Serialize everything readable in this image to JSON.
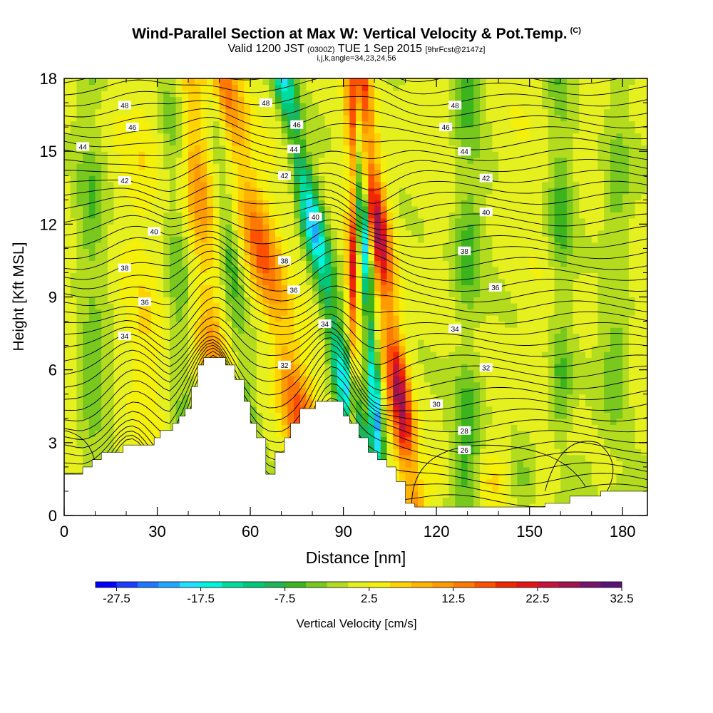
{
  "header": {
    "title": "Wind-Parallel Section at Max W: Vertical Velocity & Pot.Temp.",
    "copyright": "(C)",
    "valid_prefix": "Valid 1200 JST",
    "valid_utc": "(0300Z)",
    "valid_date": "TUE 1 Sep 2015",
    "forecast": "[9hrFcst@2147z]",
    "indices": "i,j,k,angle=34,23,24,56"
  },
  "chart_data": {
    "type": "heatmap",
    "title": "Wind-Parallel Section at Max W: Vertical Velocity & Pot.Temp.",
    "xlabel": "Distance [nm]",
    "ylabel": "Height [Kft MSL]",
    "xlim": [
      0,
      188
    ],
    "ylim": [
      0,
      18
    ],
    "x_ticks": [
      "0",
      "30",
      "60",
      "90",
      "120",
      "150",
      "180"
    ],
    "y_ticks": [
      "0",
      "3",
      "6",
      "9",
      "12",
      "15",
      "18"
    ],
    "colorbar": {
      "label": "Vertical Velocity [cm/s]",
      "tick_labels": [
        "-27.5",
        "-17.5",
        "-7.5",
        "2.5",
        "12.5",
        "22.5",
        "32.5"
      ],
      "colors": [
        "#0000ff",
        "#1c3cff",
        "#1e78ff",
        "#1ea8ff",
        "#1ee0ff",
        "#00f5dc",
        "#00dc9e",
        "#00c878",
        "#1eb45a",
        "#3cb41e",
        "#78c81e",
        "#b4dc1e",
        "#e6f01e",
        "#f5f00a",
        "#ffd200",
        "#ffb400",
        "#ff9a00",
        "#ff7800",
        "#ff5000",
        "#f02800",
        "#e61414",
        "#c8143c",
        "#a01450",
        "#78146e",
        "#5a1478"
      ]
    },
    "theta_labels": [
      {
        "v": "48",
        "x": 19.5,
        "y": 16.9
      },
      {
        "v": "48",
        "x": 65,
        "y": 17.0
      },
      {
        "v": "48",
        "x": 126,
        "y": 16.9
      },
      {
        "v": "46",
        "x": 22,
        "y": 16.0
      },
      {
        "v": "46",
        "x": 75,
        "y": 16.1
      },
      {
        "v": "46",
        "x": 123,
        "y": 16.0
      },
      {
        "v": "44",
        "x": 6,
        "y": 15.2
      },
      {
        "v": "44",
        "x": 74,
        "y": 15.1
      },
      {
        "v": "44",
        "x": 129,
        "y": 15.0
      },
      {
        "v": "42",
        "x": 19.5,
        "y": 13.8
      },
      {
        "v": "42",
        "x": 71,
        "y": 14.0
      },
      {
        "v": "42",
        "x": 136,
        "y": 13.9
      },
      {
        "v": "40",
        "x": 29,
        "y": 11.7
      },
      {
        "v": "40",
        "x": 81,
        "y": 12.3
      },
      {
        "v": "40",
        "x": 136,
        "y": 12.5
      },
      {
        "v": "38",
        "x": 19.5,
        "y": 10.2
      },
      {
        "v": "38",
        "x": 71,
        "y": 10.5
      },
      {
        "v": "38",
        "x": 129,
        "y": 10.9
      },
      {
        "v": "36",
        "x": 26,
        "y": 8.8
      },
      {
        "v": "36",
        "x": 74,
        "y": 9.3
      },
      {
        "v": "36",
        "x": 139,
        "y": 9.4
      },
      {
        "v": "34",
        "x": 19.5,
        "y": 7.4
      },
      {
        "v": "34",
        "x": 84,
        "y": 7.9
      },
      {
        "v": "34",
        "x": 126,
        "y": 7.7
      },
      {
        "v": "32",
        "x": 71,
        "y": 6.2
      },
      {
        "v": "32",
        "x": 136,
        "y": 6.1
      },
      {
        "v": "30",
        "x": 120,
        "y": 4.6
      },
      {
        "v": "28",
        "x": 129,
        "y": 3.5
      },
      {
        "v": "26",
        "x": 129,
        "y": 2.7
      }
    ],
    "updrafts": [
      {
        "x": 67,
        "dx": -1.8,
        "w": 5.5,
        "amp": 16
      },
      {
        "x": 104,
        "dx": -1.0,
        "w": 3.4,
        "amp": 25
      },
      {
        "x": 93,
        "dx": 0,
        "w": 1.8,
        "amp": 20
      },
      {
        "x": 46,
        "dx": -0.6,
        "w": 4.5,
        "amp": 10
      },
      {
        "x": 26,
        "dx": 0,
        "w": 6,
        "amp": 3.5
      }
    ],
    "downdrafts": [
      {
        "x": 85,
        "dx": -1.6,
        "w": 3.6,
        "amp": -22
      },
      {
        "x": 98,
        "dx": -0.5,
        "w": 2.0,
        "amp": -24
      },
      {
        "x": 55,
        "dx": -0.8,
        "w": 3.5,
        "amp": -8
      },
      {
        "x": 9,
        "dx": 0,
        "w": 5,
        "amp": -6
      },
      {
        "x": 37,
        "dx": -0.3,
        "w": 4,
        "amp": -5
      },
      {
        "x": 130,
        "dx": 0,
        "w": 5,
        "amp": -8
      },
      {
        "x": 160,
        "dx": 0,
        "w": 4,
        "amp": -7
      },
      {
        "x": 178,
        "dx": 0,
        "w": 5,
        "amp": -6
      }
    ],
    "terrain": [
      [
        0,
        1.7
      ],
      [
        6,
        1.7
      ],
      [
        6,
        2.0
      ],
      [
        9,
        2.0
      ],
      [
        9,
        2.3
      ],
      [
        12,
        2.3
      ],
      [
        12,
        2.6
      ],
      [
        19,
        2.6
      ],
      [
        19,
        2.9
      ],
      [
        29,
        2.9
      ],
      [
        29,
        3.2
      ],
      [
        31,
        3.2
      ],
      [
        31,
        3.5
      ],
      [
        35,
        3.5
      ],
      [
        35,
        3.8
      ],
      [
        37,
        3.8
      ],
      [
        37,
        4.1
      ],
      [
        39,
        4.1
      ],
      [
        39,
        4.4
      ],
      [
        41,
        4.4
      ],
      [
        41,
        5.3
      ],
      [
        43,
        5.3
      ],
      [
        43,
        6.2
      ],
      [
        45,
        6.2
      ],
      [
        45,
        6.5
      ],
      [
        52,
        6.5
      ],
      [
        52,
        6.2
      ],
      [
        55,
        6.2
      ],
      [
        55,
        5.6
      ],
      [
        58,
        5.6
      ],
      [
        58,
        4.7
      ],
      [
        60,
        4.7
      ],
      [
        60,
        3.8
      ],
      [
        62,
        3.8
      ],
      [
        62,
        3.2
      ],
      [
        65,
        3.2
      ],
      [
        65,
        1.7
      ],
      [
        68,
        1.7
      ],
      [
        68,
        2.6
      ],
      [
        71,
        2.6
      ],
      [
        71,
        3.2
      ],
      [
        73,
        3.2
      ],
      [
        73,
        3.8
      ],
      [
        76,
        3.8
      ],
      [
        76,
        4.4
      ],
      [
        81,
        4.4
      ],
      [
        81,
        4.7
      ],
      [
        90,
        4.7
      ],
      [
        90,
        4.1
      ],
      [
        92,
        4.1
      ],
      [
        92,
        3.8
      ],
      [
        95,
        3.8
      ],
      [
        95,
        3.2
      ],
      [
        98,
        3.2
      ],
      [
        98,
        2.6
      ],
      [
        101,
        2.6
      ],
      [
        101,
        2.3
      ],
      [
        104,
        2.3
      ],
      [
        104,
        2.0
      ],
      [
        107,
        2.0
      ],
      [
        107,
        1.4
      ],
      [
        110,
        1.4
      ],
      [
        110,
        0.5
      ],
      [
        113,
        0.5
      ],
      [
        113,
        0.35
      ],
      [
        155,
        0.35
      ],
      [
        155,
        0.5
      ],
      [
        163,
        0.5
      ],
      [
        163,
        0.8
      ],
      [
        173,
        0.8
      ],
      [
        173,
        1.0
      ],
      [
        188,
        1.0
      ],
      [
        188,
        0
      ],
      [
        0,
        0
      ]
    ]
  }
}
